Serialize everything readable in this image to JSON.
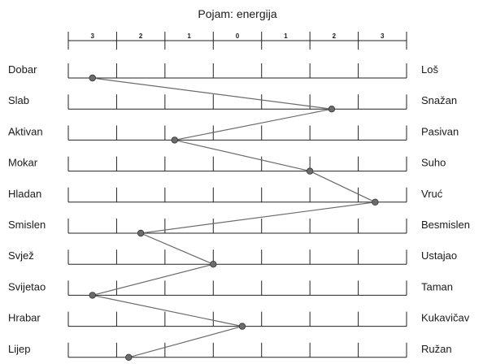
{
  "chart_data": {
    "type": "line",
    "title": "Pojam: energija",
    "scale_labels": [
      "3",
      "2",
      "1",
      "0",
      "1",
      "2",
      "3"
    ],
    "rows": [
      {
        "left": "Dobar",
        "right": "Loš",
        "value": -3.0
      },
      {
        "left": "Slab",
        "right": "Snažan",
        "value": 1.95
      },
      {
        "left": "Aktivan",
        "right": "Pasivan",
        "value": -1.3
      },
      {
        "left": "Mokar",
        "right": "Suho",
        "value": 1.5
      },
      {
        "left": "Hladan",
        "right": "Vruć",
        "value": 2.85
      },
      {
        "left": "Smislen",
        "right": "Besmislen",
        "value": -2.0
      },
      {
        "left": "Svjež",
        "right": "Ustajao",
        "value": -0.5
      },
      {
        "left": "Svijetao",
        "right": "Taman",
        "value": -3.0
      },
      {
        "left": "Hrabar",
        "right": "Kukavičav",
        "value": 0.1
      },
      {
        "left": "Lijep",
        "right": "Ružan",
        "value": -2.25
      }
    ],
    "xlim": [
      -3.5,
      3.5
    ],
    "series_color": "#6b6b6b",
    "marker_color": "#6b6b6b"
  }
}
